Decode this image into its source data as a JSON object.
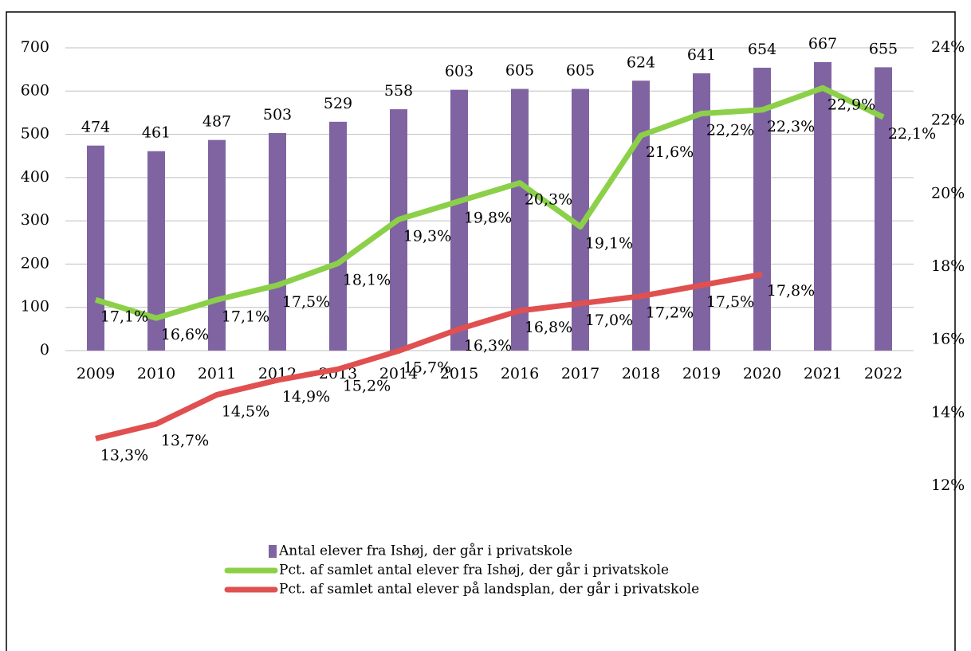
{
  "chart_data": {
    "type": "bar_line",
    "categories": [
      "2009",
      "2010",
      "2011",
      "2012",
      "2013",
      "2014",
      "2015",
      "2016",
      "2017",
      "2018",
      "2019",
      "2020",
      "2021",
      "2022"
    ],
    "series": [
      {
        "name": "Antal elever fra Ishøj, der går i privatskole",
        "type": "bar",
        "color": "#8064a2",
        "values": [
          474,
          461,
          487,
          503,
          529,
          558,
          603,
          605,
          605,
          624,
          641,
          654,
          667,
          655
        ]
      },
      {
        "name": "Pct. af samlet antal elever fra Ishøj, der går i privatskole",
        "type": "line",
        "axis": "y2",
        "color": "#8cd04a",
        "values": [
          17.1,
          16.6,
          17.1,
          17.5,
          18.1,
          19.3,
          19.8,
          20.3,
          19.1,
          21.6,
          22.2,
          22.3,
          22.9,
          22.1
        ],
        "value_labels": [
          "17,1%",
          "16,6%",
          "17,1%",
          "17,5%",
          "18,1%",
          "19,3%",
          "19,8%",
          "20,3%",
          "19,1%",
          "21,6%",
          "22,2%",
          "22,3%",
          "22,9%",
          "22,1%"
        ]
      },
      {
        "name": "Pct. af samlet antal elever på landsplan, der går i privatskole",
        "type": "line",
        "axis": "y2",
        "color": "#e05050",
        "values": [
          13.3,
          13.7,
          14.5,
          14.9,
          15.2,
          15.7,
          16.3,
          16.8,
          17.0,
          17.2,
          17.5,
          17.8,
          null,
          null
        ],
        "value_labels": [
          "13,3%",
          "13,7%",
          "14,5%",
          "14,9%",
          "15,2%",
          "15,7%",
          "16,3%",
          "16,8%",
          "17,0%",
          "17,2%",
          "17,5%",
          "17,8%",
          null,
          null
        ]
      }
    ],
    "ylim": [
      0,
      700
    ],
    "yticks": [
      0,
      100,
      200,
      300,
      400,
      500,
      600,
      700
    ],
    "y2lim": [
      12,
      24
    ],
    "y2ticks": [
      {
        "value": 12,
        "label": "12%"
      },
      {
        "value": 14,
        "label": "14%"
      },
      {
        "value": 16,
        "label": "16%"
      },
      {
        "value": 18,
        "label": "18%"
      },
      {
        "value": 20,
        "label": "20%"
      },
      {
        "value": 22,
        "label": "22%"
      },
      {
        "value": 24,
        "label": "24%"
      }
    ],
    "grid": true,
    "legend": "bottom"
  }
}
